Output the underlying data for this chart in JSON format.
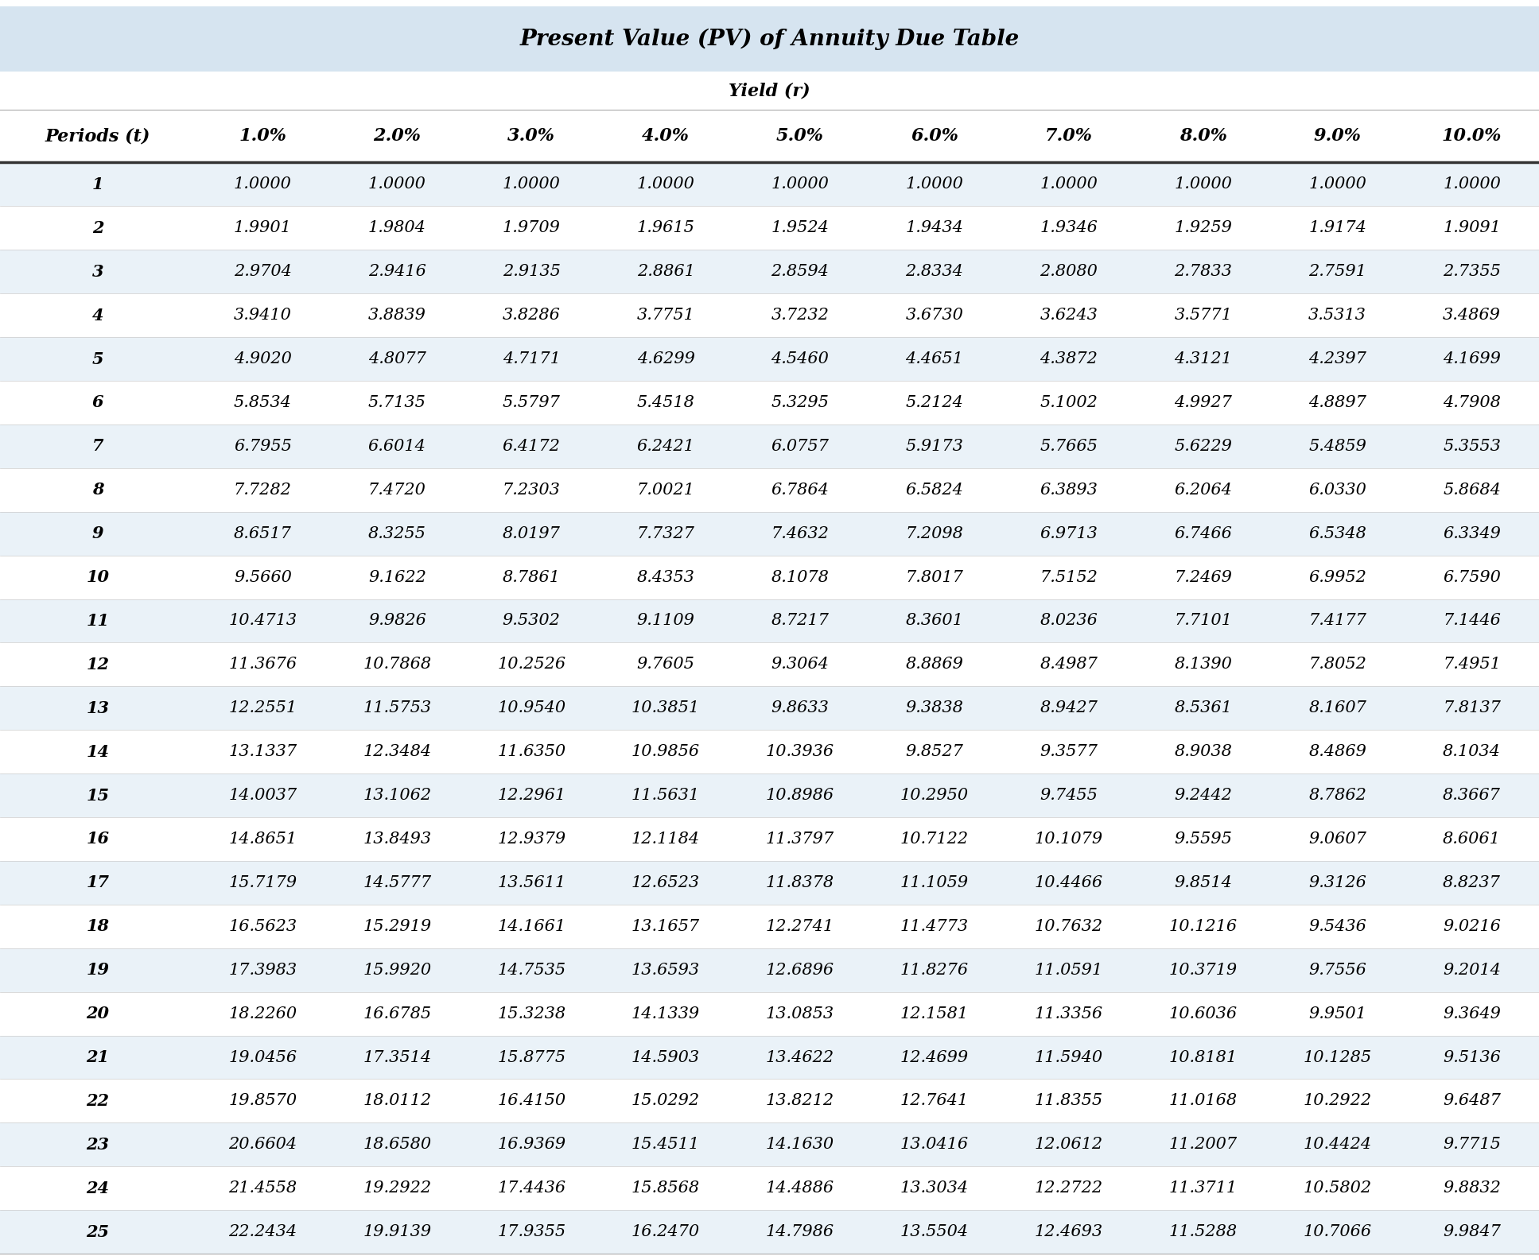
{
  "title": "Present Value (PV) of Annuity Due Table",
  "subtitle": "Yield (r)",
  "col_header": [
    "Periods (t)",
    "1.0%",
    "2.0%",
    "3.0%",
    "4.0%",
    "5.0%",
    "6.0%",
    "7.0%",
    "8.0%",
    "9.0%",
    "10.0%"
  ],
  "rows": [
    [
      1,
      1.0,
      1.0,
      1.0,
      1.0,
      1.0,
      1.0,
      1.0,
      1.0,
      1.0,
      1.0
    ],
    [
      2,
      1.9901,
      1.9804,
      1.9709,
      1.9615,
      1.9524,
      1.9434,
      1.9346,
      1.9259,
      1.9174,
      1.9091
    ],
    [
      3,
      2.9704,
      2.9416,
      2.9135,
      2.8861,
      2.8594,
      2.8334,
      2.808,
      2.7833,
      2.7591,
      2.7355
    ],
    [
      4,
      3.941,
      3.8839,
      3.8286,
      3.7751,
      3.7232,
      3.673,
      3.6243,
      3.5771,
      3.5313,
      3.4869
    ],
    [
      5,
      4.902,
      4.8077,
      4.7171,
      4.6299,
      4.546,
      4.4651,
      4.3872,
      4.3121,
      4.2397,
      4.1699
    ],
    [
      6,
      5.8534,
      5.7135,
      5.5797,
      5.4518,
      5.3295,
      5.2124,
      5.1002,
      4.9927,
      4.8897,
      4.7908
    ],
    [
      7,
      6.7955,
      6.6014,
      6.4172,
      6.2421,
      6.0757,
      5.9173,
      5.7665,
      5.6229,
      5.4859,
      5.3553
    ],
    [
      8,
      7.7282,
      7.472,
      7.2303,
      7.0021,
      6.7864,
      6.5824,
      6.3893,
      6.2064,
      6.033,
      5.8684
    ],
    [
      9,
      8.6517,
      8.3255,
      8.0197,
      7.7327,
      7.4632,
      7.2098,
      6.9713,
      6.7466,
      6.5348,
      6.3349
    ],
    [
      10,
      9.566,
      9.1622,
      8.7861,
      8.4353,
      8.1078,
      7.8017,
      7.5152,
      7.2469,
      6.9952,
      6.759
    ],
    [
      11,
      10.4713,
      9.9826,
      9.5302,
      9.1109,
      8.7217,
      8.3601,
      8.0236,
      7.7101,
      7.4177,
      7.1446
    ],
    [
      12,
      11.3676,
      10.7868,
      10.2526,
      9.7605,
      9.3064,
      8.8869,
      8.4987,
      8.139,
      7.8052,
      7.4951
    ],
    [
      13,
      12.2551,
      11.5753,
      10.954,
      10.3851,
      9.8633,
      9.3838,
      8.9427,
      8.5361,
      8.1607,
      7.8137
    ],
    [
      14,
      13.1337,
      12.3484,
      11.635,
      10.9856,
      10.3936,
      9.8527,
      9.3577,
      8.9038,
      8.4869,
      8.1034
    ],
    [
      15,
      14.0037,
      13.1062,
      12.2961,
      11.5631,
      10.8986,
      10.295,
      9.7455,
      9.2442,
      8.7862,
      8.3667
    ],
    [
      16,
      14.8651,
      13.8493,
      12.9379,
      12.1184,
      11.3797,
      10.7122,
      10.1079,
      9.5595,
      9.0607,
      8.6061
    ],
    [
      17,
      15.7179,
      14.5777,
      13.5611,
      12.6523,
      11.8378,
      11.1059,
      10.4466,
      9.8514,
      9.3126,
      8.8237
    ],
    [
      18,
      16.5623,
      15.2919,
      14.1661,
      13.1657,
      12.2741,
      11.4773,
      10.7632,
      10.1216,
      9.5436,
      9.0216
    ],
    [
      19,
      17.3983,
      15.992,
      14.7535,
      13.6593,
      12.6896,
      11.8276,
      11.0591,
      10.3719,
      9.7556,
      9.2014
    ],
    [
      20,
      18.226,
      16.6785,
      15.3238,
      14.1339,
      13.0853,
      12.1581,
      11.3356,
      10.6036,
      9.9501,
      9.3649
    ],
    [
      21,
      19.0456,
      17.3514,
      15.8775,
      14.5903,
      13.4622,
      12.4699,
      11.594,
      10.8181,
      10.1285,
      9.5136
    ],
    [
      22,
      19.857,
      18.0112,
      16.415,
      15.0292,
      13.8212,
      12.7641,
      11.8355,
      11.0168,
      10.2922,
      9.6487
    ],
    [
      23,
      20.6604,
      18.658,
      16.9369,
      15.4511,
      14.163,
      13.0416,
      12.0612,
      11.2007,
      10.4424,
      9.7715
    ],
    [
      24,
      21.4558,
      19.2922,
      17.4436,
      15.8568,
      14.4886,
      13.3034,
      12.2722,
      11.3711,
      10.5802,
      9.8832
    ],
    [
      25,
      22.2434,
      19.9139,
      17.9355,
      16.247,
      14.7986,
      13.5504,
      12.4693,
      11.5288,
      10.7066,
      9.9847
    ]
  ],
  "title_bg": "#d6e4f0",
  "header_bg": "#ffffff",
  "odd_row_bg": "#eaf2f8",
  "even_row_bg": "#ffffff",
  "title_fontsize": 20,
  "header_fontsize": 16,
  "cell_fontsize": 15,
  "fig_bg": "#ffffff"
}
